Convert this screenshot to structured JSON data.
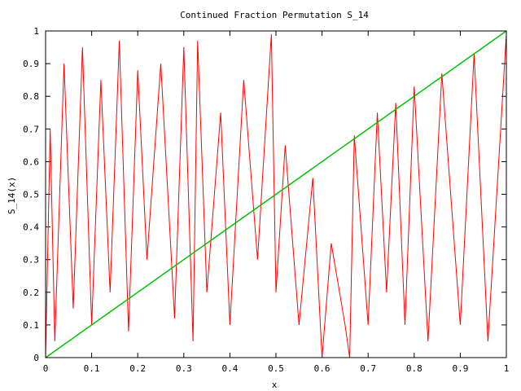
{
  "chart_data": {
    "type": "line",
    "title": "Continued Fraction Permutation S_14",
    "xlabel": "x",
    "ylabel": "S_14(x)",
    "xlim": [
      0,
      1
    ],
    "ylim": [
      0,
      1
    ],
    "grid": false,
    "x_ticks": [
      "0",
      "0.1",
      "0.2",
      "0.3",
      "0.4",
      "0.5",
      "0.6",
      "0.7",
      "0.8",
      "0.9",
      "1"
    ],
    "y_ticks": [
      "0",
      "0.1",
      "0.2",
      "0.3",
      "0.4",
      "0.5",
      "0.6",
      "0.7",
      "0.8",
      "0.9",
      "1"
    ],
    "series": [
      {
        "color": "#ff0000",
        "x": [
          0.0,
          0.01,
          0.02,
          0.04,
          0.06,
          0.08,
          0.1,
          0.12,
          0.14,
          0.16,
          0.18,
          0.2,
          0.22,
          0.25,
          0.28,
          0.3,
          0.32,
          0.33,
          0.35,
          0.38,
          0.4,
          0.43,
          0.46,
          0.49,
          0.5,
          0.52,
          0.55,
          0.58,
          0.6,
          0.62,
          0.65,
          0.66,
          0.67,
          0.7,
          0.72,
          0.74,
          0.76,
          0.78,
          0.8,
          0.83,
          0.86,
          0.9,
          0.93,
          0.96,
          1.0
        ],
        "y": [
          0.0,
          0.7,
          0.05,
          0.9,
          0.15,
          0.95,
          0.1,
          0.85,
          0.2,
          0.97,
          0.08,
          0.88,
          0.3,
          0.9,
          0.12,
          0.95,
          0.05,
          0.97,
          0.2,
          0.75,
          0.1,
          0.85,
          0.3,
          0.99,
          0.2,
          0.65,
          0.1,
          0.55,
          0.0,
          0.35,
          0.1,
          0.0,
          0.68,
          0.1,
          0.75,
          0.2,
          0.78,
          0.1,
          0.83,
          0.05,
          0.87,
          0.1,
          0.93,
          0.05,
          0.99
        ]
      },
      {
        "color": "#00c000",
        "x": [
          0,
          1
        ],
        "y": [
          0,
          1
        ]
      }
    ]
  }
}
